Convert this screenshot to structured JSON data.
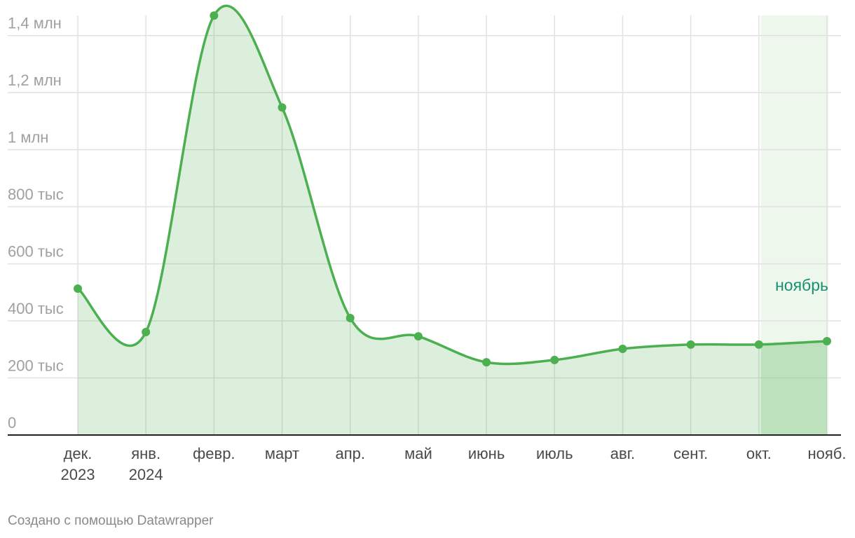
{
  "chart_data": {
    "type": "area",
    "categories": [
      "дек. 2023",
      "янв. 2024",
      "февр.",
      "март",
      "апр.",
      "май",
      "июнь",
      "июль",
      "авг.",
      "сент.",
      "окт.",
      "нояб."
    ],
    "values": [
      513000,
      361000,
      1470000,
      1148000,
      410000,
      346000,
      255000,
      263000,
      302000,
      317000,
      317000,
      329000
    ],
    "color": "#4caf50",
    "ylim": [
      0,
      1500000
    ],
    "yticks": [
      {
        "value": 0,
        "label": "0"
      },
      {
        "value": 200000,
        "label": "200 тыс"
      },
      {
        "value": 400000,
        "label": "400 тыс"
      },
      {
        "value": 600000,
        "label": "600 тыс"
      },
      {
        "value": 800000,
        "label": "800 тыс"
      },
      {
        "value": 1000000,
        "label": "1 млн"
      },
      {
        "value": 1200000,
        "label": "1,2 млн"
      },
      {
        "value": 1400000,
        "label": "1,4 млн"
      }
    ],
    "grid": true,
    "highlight": {
      "category": "нояб.",
      "label": "ноябрь",
      "color": "#1a8f74"
    },
    "credit": "Создано с помощью Datawrapper"
  }
}
